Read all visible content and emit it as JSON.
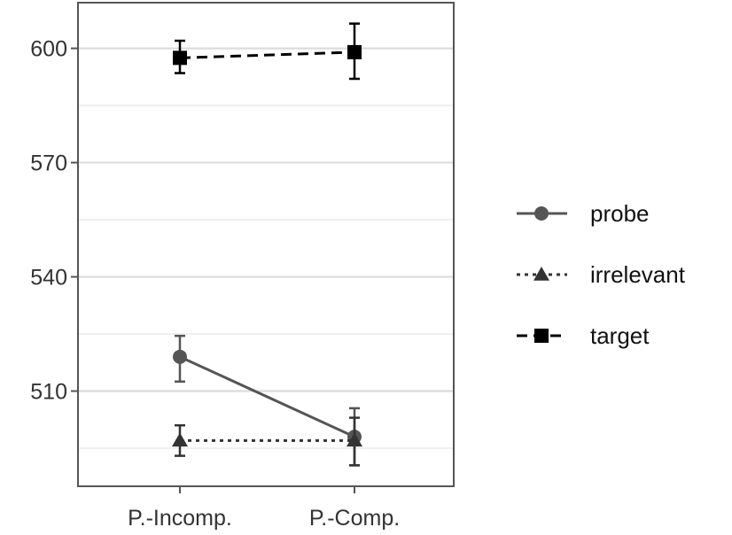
{
  "chart_data": {
    "type": "line",
    "categories": [
      "P.-Incomp.",
      "P.-Comp."
    ],
    "y_ticks": [
      "510",
      "540",
      "570",
      "600"
    ],
    "ylim": [
      485,
      612
    ],
    "grid": true,
    "legend_position": "right",
    "series": [
      {
        "name": "probe",
        "marker": "circle",
        "line": "solid",
        "color": "#555555",
        "values": [
          519,
          498
        ],
        "err_low": [
          512.5,
          490.5
        ],
        "err_high": [
          524.5,
          505.5
        ]
      },
      {
        "name": "irrelevant",
        "marker": "triangle",
        "line": "dotted",
        "color": "#333333",
        "values": [
          497,
          497
        ],
        "err_low": [
          493,
          490.5
        ],
        "err_high": [
          501,
          503
        ]
      },
      {
        "name": "target",
        "marker": "square",
        "line": "dashed",
        "color": "#000000",
        "values": [
          597.5,
          599
        ],
        "err_low": [
          593.5,
          592
        ],
        "err_high": [
          602,
          606.5
        ]
      }
    ]
  }
}
